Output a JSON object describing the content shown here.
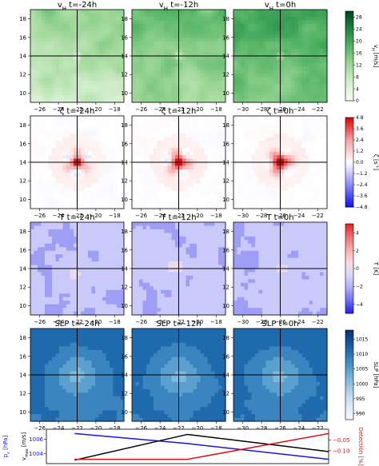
{
  "figure": {
    "rows": [
      {
        "variable": "vH",
        "titles": [
          "v$_H$  t=-24h",
          "v$_H$  t=-12h",
          "v$_H$  t=0h"
        ],
        "colorbar": {
          "label": "v$_H$ [m/s]",
          "ticks": [
            "0",
            "4",
            "8",
            "12",
            "16",
            "20",
            "24",
            "28"
          ],
          "range": [
            0,
            30
          ],
          "colors": [
            "#f7fcf5",
            "#d5efcf",
            "#9ed798",
            "#55b567",
            "#1d8641",
            "#00441b"
          ]
        }
      },
      {
        "variable": "vorticity",
        "titles": [
          "ζ  t=-24h",
          "ζ  t=-12h",
          "ζ  t=0h"
        ],
        "colorbar": {
          "label": "ζ [s$^{-1}$]",
          "ticks": [
            "4.8",
            "3.6",
            "2.4",
            "1.2",
            "0.0",
            "−1.2",
            "−2.4",
            "−3.6",
            "−4.8"
          ],
          "range": [
            -4.8,
            4.8
          ],
          "colors": [
            "#1010ee",
            "#8c8cf8",
            "#ffffff",
            "#f8a0a0",
            "#e00000"
          ]
        }
      },
      {
        "variable": "T",
        "titles": [
          "T  t=-24h",
          "T  t=-12h",
          "T  t=0h"
        ],
        "colorbar": {
          "label": "T [K]",
          "ticks": [
            "4",
            "2",
            "0",
            "−2",
            "−4"
          ],
          "range": [
            -5,
            5
          ],
          "colors": [
            "#2121f0",
            "#6e6ef5",
            "#aeaef8",
            "#d9d9fb",
            "#fbd9d9",
            "#f6aeae",
            "#ef6e6e",
            "#e82121"
          ]
        }
      },
      {
        "variable": "SLP",
        "titles": [
          "SLP  t=-24h",
          "SLP  t=-12h",
          "SLP  t=0h"
        ],
        "colorbar": {
          "label": "SLP [hPa]",
          "ticks": [
            "1015",
            "1010",
            "1005",
            "1000",
            "995",
            "990"
          ],
          "range": [
            988,
            1018
          ],
          "colors": [
            "#f7fbff",
            "#c6dbef",
            "#6baed6",
            "#2171b5",
            "#08306b"
          ]
        }
      }
    ],
    "panel_xticks": [
      [
        "−26",
        "−24",
        "−22",
        "−20",
        "−18"
      ],
      [
        "−26",
        "−24",
        "−22",
        "−20",
        "−18"
      ],
      [
        "−30",
        "−28",
        "−26",
        "−24",
        "−22"
      ]
    ],
    "panel_yticks": [
      "18",
      "16",
      "14",
      "12",
      "10"
    ]
  },
  "chart_data": [
    {
      "type": "heatmap",
      "panels": "4 rows x 3 columns of gridded fields",
      "xlim_by_column": [
        [
          -27,
          -17
        ],
        [
          -27,
          -17
        ],
        [
          -31,
          -21
        ]
      ],
      "ylim": [
        9,
        19
      ],
      "crosshair_by_column": [
        {
          "x": -22,
          "y": 14
        },
        {
          "x": -22,
          "y": 14
        },
        {
          "x": -26,
          "y": 14
        }
      ],
      "grid": false
    },
    {
      "type": "line",
      "xlim": [
        -31,
        -21
      ],
      "left_axis": {
        "labels": [
          "p$_c$ [hPa]",
          "v$_{max}$ [m/s]"
        ],
        "ticks": [
          "1006",
          "1004"
        ]
      },
      "right_axis": {
        "label": "Detection [%]",
        "ticks": [
          "−0.10",
          "−0.05"
        ]
      },
      "series": [
        {
          "color": "#1515dd",
          "axis": "pressure",
          "x": [
            -30,
            -26,
            -21
          ],
          "y": [
            1006.8,
            1005.4,
            1003.2
          ]
        },
        {
          "color": "#000000",
          "axis": "vmax",
          "x": [
            -30,
            -26,
            -21
          ],
          "y": [
            0.1,
            0.85,
            0.35
          ]
        },
        {
          "color": "#dd1111",
          "axis": "detection",
          "x": [
            -30,
            -26,
            -21
          ],
          "y": [
            -0.14,
            -0.14,
            -0.02
          ]
        }
      ]
    }
  ]
}
